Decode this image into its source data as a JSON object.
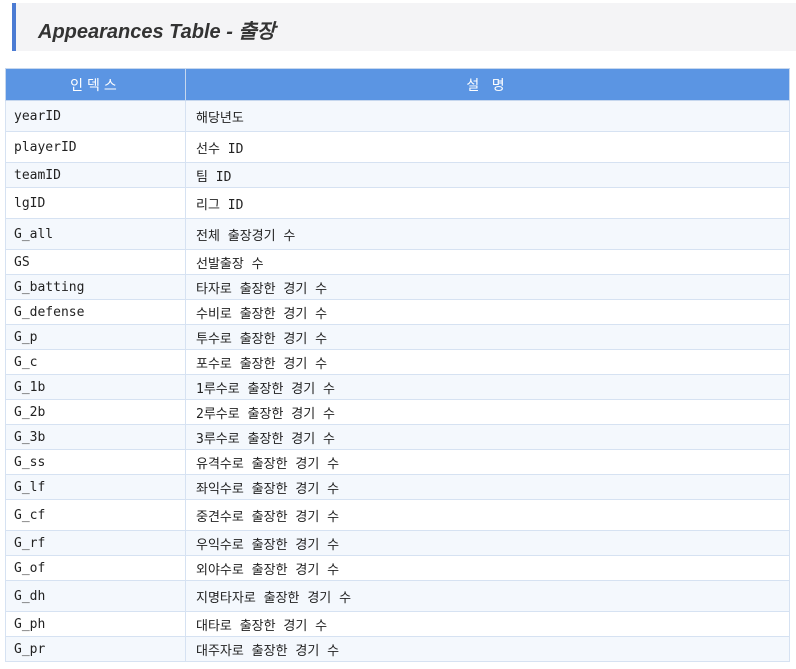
{
  "title": "Appearances Table - 출장",
  "columns": [
    "인덱스",
    "설 명"
  ],
  "rows": [
    [
      "yearID",
      "해당년도"
    ],
    [
      "playerID",
      "선수 ID"
    ],
    [
      "teamID",
      "팀 ID"
    ],
    [
      "lgID",
      "리그 ID"
    ],
    [
      "G_all",
      "전체 출장경기 수"
    ],
    [
      "GS",
      "선발출장 수"
    ],
    [
      "G_batting",
      "타자로 출장한 경기 수"
    ],
    [
      "G_defense",
      "수비로 출장한 경기 수"
    ],
    [
      "G_p",
      "투수로 출장한 경기 수"
    ],
    [
      "G_c",
      "포수로 출장한 경기 수"
    ],
    [
      "G_1b",
      "1루수로 출장한 경기 수"
    ],
    [
      "G_2b",
      "2루수로 출장한 경기 수"
    ],
    [
      "G_3b",
      "3루수로 출장한 경기 수"
    ],
    [
      "G_ss",
      "유격수로 출장한 경기 수"
    ],
    [
      "G_lf",
      "좌익수로 출장한 경기 수"
    ],
    [
      "G_cf",
      "중견수로 출장한 경기 수"
    ],
    [
      "G_rf",
      "우익수로 출장한 경기 수"
    ],
    [
      "G_of",
      "외야수로 출장한 경기 수"
    ],
    [
      "G_dh",
      "지명타자로 출장한 경기 수"
    ],
    [
      "G_ph",
      "대타로 출장한 경기 수"
    ],
    [
      "G_pr",
      "대주자로 출장한 경기 수"
    ]
  ],
  "colors": {
    "header_bg": "#5b95e3",
    "accent_bar": "#4b7bd3",
    "title_bg": "#f4f4f6",
    "row_alt": "#f4f8fd"
  }
}
